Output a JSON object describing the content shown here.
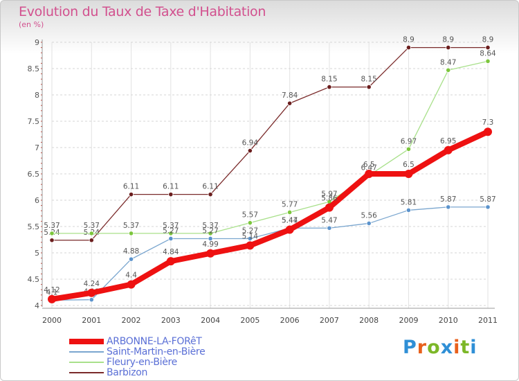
{
  "title": "Evolution du Taux de Taxe d'Habitation",
  "unit": "(en %)",
  "logo": {
    "text": "Proxiti",
    "colors": [
      "#2f8fd6",
      "#e8601c",
      "#7cb728",
      "#2f8fd6",
      "#e8601c",
      "#7cb728",
      "#2f8fd6"
    ]
  },
  "chart_data": {
    "type": "line",
    "x": [
      "2000",
      "2001",
      "2002",
      "2003",
      "2004",
      "2005",
      "2006",
      "2007",
      "2008",
      "2009",
      "2010",
      "2011"
    ],
    "ylim": [
      4,
      9
    ],
    "yticks": [
      "4",
      "4.5",
      "5",
      "5.5",
      "6",
      "6.5",
      "7",
      "7.5",
      "8",
      "8.5",
      "9"
    ],
    "grid": true,
    "legend_position": "bottom-left",
    "series": [
      {
        "name": "Barbizon",
        "color": "#7a2a2a",
        "marker": "#6b1e1e",
        "width": 1.3,
        "r": 3.2,
        "values": [
          5.24,
          5.24,
          6.11,
          6.11,
          6.11,
          6.94,
          7.84,
          8.15,
          8.15,
          8.9,
          8.9,
          8.9
        ],
        "labels": [
          "5.24",
          "5.24",
          "6.11",
          "6.11",
          "6.11",
          "6.94",
          "7.84",
          "8.15",
          "8.15",
          "8.9",
          "8.9",
          "8.9"
        ]
      },
      {
        "name": "Fleury-en-Bière",
        "color": "#a8e08a",
        "marker": "#7cc63c",
        "width": 1.3,
        "r": 3.2,
        "values": [
          5.37,
          5.37,
          5.37,
          5.37,
          5.37,
          5.57,
          5.77,
          5.97,
          6.47,
          6.97,
          8.47,
          8.64
        ],
        "labels": [
          "5.37",
          "5.37",
          "5.37",
          "5.37",
          "5.37",
          "5.57",
          "5.77",
          "5.97",
          "6.47",
          "6.97",
          "8.47",
          "8.64"
        ]
      },
      {
        "name": "Saint-Martin-en-Bière",
        "color": "#7aa6cf",
        "marker": "#5b93cc",
        "width": 1.3,
        "r": 3.2,
        "values": [
          4.1,
          4.11,
          4.88,
          5.27,
          5.27,
          5.27,
          5.47,
          5.47,
          5.56,
          5.81,
          5.87,
          5.87
        ],
        "labels": [
          "4.1",
          "4.11",
          "4.88",
          "5.27",
          "5.27",
          "5.27",
          "5.47",
          "5.47",
          "5.56",
          "5.81",
          "5.87",
          "5.87"
        ]
      },
      {
        "name": "ARBONNE-LA-FORêT",
        "color": "#ee1111",
        "marker": "#ee1111",
        "width": 8,
        "r": 6,
        "values": [
          4.12,
          4.24,
          4.4,
          4.84,
          4.99,
          5.14,
          5.44,
          5.86,
          6.5,
          6.5,
          6.95,
          7.3
        ],
        "labels": [
          "4.12",
          "4.24",
          "4.4",
          "4.84",
          "4.99",
          "5.14",
          "5.44",
          "5.86",
          "6.5",
          "6.5",
          "6.95",
          "7.3"
        ]
      }
    ]
  },
  "legend": [
    {
      "label": "ARBONNE-LA-FORêT",
      "color": "#ee1111",
      "thick": 8
    },
    {
      "label": "Saint-Martin-en-Bière",
      "color": "#7aa6cf",
      "thick": 2
    },
    {
      "label": "Fleury-en-Bière",
      "color": "#a8e08a",
      "thick": 2
    },
    {
      "label": "Barbizon",
      "color": "#7a2a2a",
      "thick": 2
    }
  ]
}
